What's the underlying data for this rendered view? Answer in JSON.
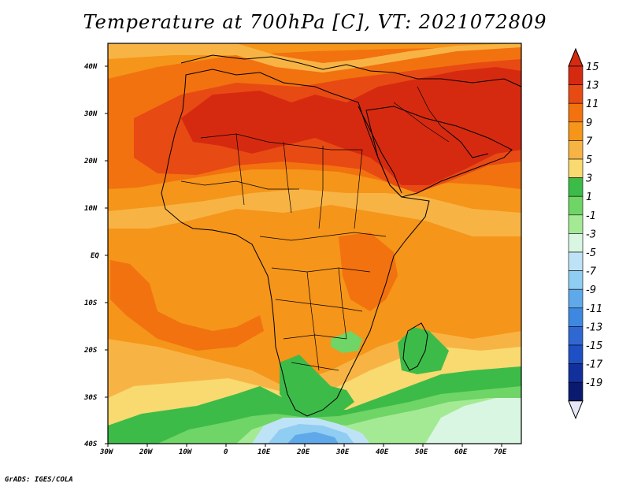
{
  "title": "Temperature at 700hPa [C], VT: 2021072809",
  "credit": "GrADS: IGES/COLA",
  "lat_labels": [
    "40N",
    "30N",
    "20N",
    "10N",
    "EQ",
    "10S",
    "20S",
    "30S",
    "40S"
  ],
  "lon_labels": [
    "30W",
    "20W",
    "10W",
    "0",
    "10E",
    "20E",
    "30E",
    "40E",
    "50E",
    "60E",
    "70E"
  ],
  "colorbar": {
    "labels": [
      "15",
      "13",
      "11",
      "9",
      "7",
      "5",
      "3",
      "1",
      "-1",
      "-3",
      "-5",
      "-7",
      "-9",
      "-11",
      "-13",
      "-15",
      "-17",
      "-19"
    ],
    "colors": [
      "#d62a10",
      "#e84a14",
      "#f2720f",
      "#f5951a",
      "#f7b445",
      "#f8da70",
      "#3dbb49",
      "#6fd566",
      "#a4ea95",
      "#d8f6e2",
      "#bfe3f6",
      "#90cdf2",
      "#5fa9ea",
      "#3e88e0",
      "#2f68d3",
      "#1f4fc4",
      "#12309b",
      "#0a1a6e"
    ]
  },
  "map_colors": {
    "hot": "#d62a10",
    "warm": "#e84a14",
    "orange": "#f2720f",
    "lightorange": "#f5951a",
    "tan": "#f7b445",
    "yellow": "#f8da70",
    "green": "#3dbb49",
    "lightgreen": "#6fd566",
    "palegreen": "#a4ea95",
    "mint": "#d8f6e2",
    "lightblue": "#bfe3f6",
    "blue": "#90cdf2",
    "midblue": "#5fa9ea"
  }
}
